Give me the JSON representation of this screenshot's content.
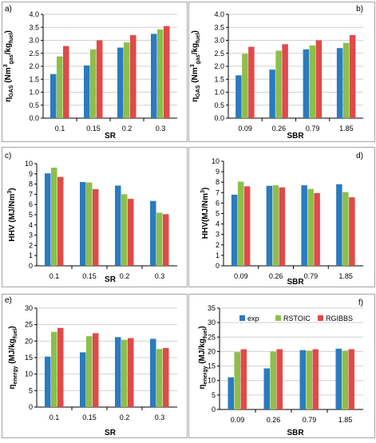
{
  "colors": {
    "exp": "#2a7bbf",
    "rstoic": "#8cbf4a",
    "rgibbs": "#e04a4a",
    "frame": "#a6a6a6",
    "grid": "#d0d0d0",
    "axis": "#000000"
  },
  "chart_data": [
    {
      "id": "a",
      "panel_label": "a)",
      "type": "bar",
      "ylabel_main": "η",
      "ylabel_sub": "GAS",
      "ylabel_rest": " (Nm",
      "ylabel_sup": "3",
      "ylabel_sub2": "gas",
      "ylabel_mid": "/kg",
      "ylabel_sub3": "fuel",
      "ylabel_end": ")",
      "xlabel": "SR",
      "categories": [
        "0.1",
        "0.15",
        "0.2",
        "0.3"
      ],
      "ylim": [
        0,
        4
      ],
      "yticks": [
        "0.0",
        "0.5",
        "1.0",
        "1.5",
        "2.0",
        "2.5",
        "3.0",
        "3.5",
        "4.0"
      ],
      "grid": true,
      "series": [
        {
          "key": "exp",
          "values": [
            1.7,
            2.03,
            2.72,
            3.25
          ]
        },
        {
          "key": "rstoic",
          "values": [
            2.38,
            2.65,
            2.92,
            3.42
          ]
        },
        {
          "key": "rgibbs",
          "values": [
            2.78,
            3.0,
            3.2,
            3.55
          ]
        }
      ]
    },
    {
      "id": "b",
      "panel_label": "b)",
      "type": "bar",
      "ylabel_main": "η",
      "ylabel_sub": "GAS",
      "ylabel_rest": " (Nm",
      "ylabel_sup": "3",
      "ylabel_sub2": "gas",
      "ylabel_mid": "/kg",
      "ylabel_sub3": "fuel",
      "ylabel_end": ")",
      "xlabel": "SBR",
      "categories": [
        "0.09",
        "0.26",
        "0.79",
        "1.85"
      ],
      "ylim": [
        0,
        4
      ],
      "yticks": [
        "0.0",
        "0.5",
        "1.0",
        "1.5",
        "2.0",
        "2.5",
        "3.0",
        "3.5",
        "4.0"
      ],
      "grid": true,
      "series": [
        {
          "key": "exp",
          "values": [
            1.65,
            1.87,
            2.65,
            2.7
          ]
        },
        {
          "key": "rstoic",
          "values": [
            2.48,
            2.6,
            2.8,
            2.9
          ]
        },
        {
          "key": "rgibbs",
          "values": [
            2.75,
            2.85,
            3.0,
            3.2
          ]
        }
      ]
    },
    {
      "id": "c",
      "panel_label": "c)",
      "type": "bar",
      "ylabel_main": "HHV",
      "ylabel_rest": " (MJ/Nm",
      "ylabel_sup": "3",
      "ylabel_end": ")",
      "xlabel": "SR",
      "categories": [
        "0.1",
        "0.15",
        "0.2",
        "0.3"
      ],
      "ylim": [
        0,
        10
      ],
      "yticks": [
        "0",
        "1",
        "2",
        "3",
        "4",
        "5",
        "6",
        "7",
        "8",
        "9",
        "10"
      ],
      "grid": false,
      "series": [
        {
          "key": "exp",
          "values": [
            9.05,
            8.2,
            7.85,
            6.35
          ]
        },
        {
          "key": "rstoic",
          "values": [
            9.6,
            8.15,
            7.0,
            5.2
          ]
        },
        {
          "key": "rgibbs",
          "values": [
            8.7,
            7.5,
            6.55,
            5.05
          ]
        }
      ]
    },
    {
      "id": "d",
      "panel_label": "d)",
      "type": "bar",
      "ylabel_main": "HHV",
      "ylabel_rest": "(MJ/Nm",
      "ylabel_sup": "3",
      "ylabel_end": ")",
      "xlabel": "SBR",
      "categories": [
        "0.09",
        "0.26",
        "0.79",
        "1.85"
      ],
      "ylim": [
        0,
        10
      ],
      "yticks": [
        "0",
        "1",
        "2",
        "3",
        "4",
        "5",
        "6",
        "7",
        "8",
        "9",
        "10"
      ],
      "grid": false,
      "series": [
        {
          "key": "exp",
          "values": [
            6.8,
            7.65,
            7.7,
            7.8
          ]
        },
        {
          "key": "rstoic",
          "values": [
            8.05,
            7.7,
            7.35,
            7.05
          ]
        },
        {
          "key": "rgibbs",
          "values": [
            7.6,
            7.5,
            6.95,
            6.55
          ]
        }
      ]
    },
    {
      "id": "e",
      "panel_label": "e)",
      "type": "bar",
      "ylabel_main": "η",
      "ylabel_sub": "energy",
      "ylabel_rest": " (MJ/kg",
      "ylabel_sub3": "fuel",
      "ylabel_end": ")",
      "xlabel": "SR",
      "categories": [
        "0.1",
        "0.15",
        "0.2",
        "0.3"
      ],
      "ylim": [
        0,
        30
      ],
      "yticks": [
        "0",
        "5",
        "10",
        "15",
        "20",
        "25",
        "30"
      ],
      "grid": true,
      "series": [
        {
          "key": "exp",
          "values": [
            15.3,
            16.6,
            21.2,
            20.7
          ]
        },
        {
          "key": "rstoic",
          "values": [
            22.8,
            21.5,
            20.4,
            17.6
          ]
        },
        {
          "key": "rgibbs",
          "values": [
            24.0,
            22.4,
            20.9,
            17.9
          ]
        }
      ]
    },
    {
      "id": "f",
      "panel_label": "f)",
      "type": "bar",
      "ylabel_main": "η",
      "ylabel_sub": "energy",
      "ylabel_rest": " (MJ/kg",
      "ylabel_sub3": "fuel",
      "ylabel_end": ")",
      "xlabel": "SBR",
      "categories": [
        "0.09",
        "0.26",
        "0.79",
        "1.85"
      ],
      "ylim": [
        0,
        35
      ],
      "yticks": [
        "0",
        "5",
        "10",
        "15",
        "20",
        "25",
        "30",
        "35"
      ],
      "grid": true,
      "legend": [
        {
          "key": "exp",
          "label": "exp"
        },
        {
          "key": "rstoic",
          "label": "RSTOIC"
        },
        {
          "key": "rgibbs",
          "label": "RGIBBS"
        }
      ],
      "legend_position": "top",
      "series": [
        {
          "key": "exp",
          "values": [
            11.1,
            14.2,
            20.5,
            21.0
          ]
        },
        {
          "key": "rstoic",
          "values": [
            19.8,
            20.0,
            20.3,
            20.3
          ]
        },
        {
          "key": "rgibbs",
          "values": [
            20.8,
            20.8,
            20.8,
            20.8
          ]
        }
      ]
    }
  ]
}
